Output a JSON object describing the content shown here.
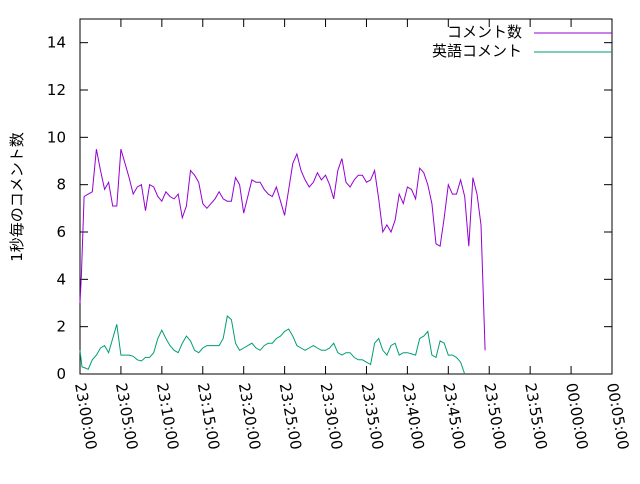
{
  "chart_data": {
    "type": "line",
    "title": "",
    "ylabel": "1秒毎のコメント数",
    "xlabel": "",
    "ylim": [
      0,
      15
    ],
    "y_ticks": [
      0,
      2,
      4,
      6,
      8,
      10,
      12,
      14
    ],
    "x_ticks": [
      "23:00:00",
      "23:05:00",
      "23:10:00",
      "23:15:00",
      "23:20:00",
      "23:25:00",
      "23:30:00",
      "23:35:00",
      "23:40:00",
      "23:45:00",
      "23:50:00",
      "23:55:00",
      "00:00:00",
      "00:05:00"
    ],
    "x_range": [
      "23:00:00",
      "00:05:00"
    ],
    "legend_position": "top-right",
    "grid": false,
    "series": [
      {
        "name": "コメント数",
        "color": "#9400d3",
        "points": [
          [
            "23:00:00",
            3.0
          ],
          [
            "23:00:10",
            4.2
          ],
          [
            "23:00:30",
            7.5
          ],
          [
            "23:01:00",
            7.6
          ],
          [
            "23:01:30",
            7.7
          ],
          [
            "23:02:00",
            9.5
          ],
          [
            "23:02:30",
            8.6
          ],
          [
            "23:03:00",
            7.8
          ],
          [
            "23:03:30",
            8.1
          ],
          [
            "23:04:00",
            7.1
          ],
          [
            "23:04:30",
            7.1
          ],
          [
            "23:05:00",
            9.5
          ],
          [
            "23:05:30",
            8.9
          ],
          [
            "23:06:00",
            8.3
          ],
          [
            "23:06:30",
            7.6
          ],
          [
            "23:07:00",
            7.9
          ],
          [
            "23:07:30",
            8.0
          ],
          [
            "23:08:00",
            6.9
          ],
          [
            "23:08:30",
            8.0
          ],
          [
            "23:09:00",
            7.9
          ],
          [
            "23:09:30",
            7.5
          ],
          [
            "23:10:00",
            7.3
          ],
          [
            "23:10:30",
            7.7
          ],
          [
            "23:11:00",
            7.5
          ],
          [
            "23:11:30",
            7.4
          ],
          [
            "23:12:00",
            7.6
          ],
          [
            "23:12:30",
            6.6
          ],
          [
            "23:13:00",
            7.1
          ],
          [
            "23:13:30",
            8.6
          ],
          [
            "23:14:00",
            8.4
          ],
          [
            "23:14:30",
            8.1
          ],
          [
            "23:15:00",
            7.2
          ],
          [
            "23:15:30",
            7.0
          ],
          [
            "23:16:00",
            7.2
          ],
          [
            "23:16:30",
            7.4
          ],
          [
            "23:17:00",
            7.7
          ],
          [
            "23:17:30",
            7.4
          ],
          [
            "23:18:00",
            7.3
          ],
          [
            "23:18:30",
            7.3
          ],
          [
            "23:19:00",
            8.3
          ],
          [
            "23:19:30",
            8.0
          ],
          [
            "23:20:00",
            6.8
          ],
          [
            "23:20:30",
            7.5
          ],
          [
            "23:21:00",
            8.2
          ],
          [
            "23:21:30",
            8.1
          ],
          [
            "23:22:00",
            8.1
          ],
          [
            "23:22:30",
            7.8
          ],
          [
            "23:23:00",
            7.6
          ],
          [
            "23:23:30",
            7.5
          ],
          [
            "23:24:00",
            7.9
          ],
          [
            "23:24:30",
            7.3
          ],
          [
            "23:25:00",
            6.7
          ],
          [
            "23:25:30",
            7.8
          ],
          [
            "23:26:00",
            8.9
          ],
          [
            "23:26:30",
            9.3
          ],
          [
            "23:27:00",
            8.6
          ],
          [
            "23:27:30",
            8.2
          ],
          [
            "23:28:00",
            7.9
          ],
          [
            "23:28:30",
            8.1
          ],
          [
            "23:29:00",
            8.5
          ],
          [
            "23:29:30",
            8.2
          ],
          [
            "23:30:00",
            8.4
          ],
          [
            "23:30:30",
            8.0
          ],
          [
            "23:31:00",
            7.4
          ],
          [
            "23:31:30",
            8.6
          ],
          [
            "23:32:00",
            9.1
          ],
          [
            "23:32:30",
            8.1
          ],
          [
            "23:33:00",
            7.9
          ],
          [
            "23:33:30",
            8.2
          ],
          [
            "23:34:00",
            8.4
          ],
          [
            "23:34:30",
            8.4
          ],
          [
            "23:35:00",
            8.1
          ],
          [
            "23:35:30",
            8.2
          ],
          [
            "23:36:00",
            8.6
          ],
          [
            "23:36:30",
            7.4
          ],
          [
            "23:37:00",
            6.0
          ],
          [
            "23:37:30",
            6.3
          ],
          [
            "23:38:00",
            6.0
          ],
          [
            "23:38:30",
            6.5
          ],
          [
            "23:39:00",
            7.6
          ],
          [
            "23:39:30",
            7.2
          ],
          [
            "23:40:00",
            7.9
          ],
          [
            "23:40:30",
            7.8
          ],
          [
            "23:41:00",
            7.4
          ],
          [
            "23:41:30",
            8.7
          ],
          [
            "23:42:00",
            8.5
          ],
          [
            "23:42:30",
            8.0
          ],
          [
            "23:43:00",
            7.2
          ],
          [
            "23:43:30",
            5.5
          ],
          [
            "23:44:00",
            5.4
          ],
          [
            "23:44:30",
            6.6
          ],
          [
            "23:45:00",
            8.0
          ],
          [
            "23:45:30",
            7.6
          ],
          [
            "23:46:00",
            7.6
          ],
          [
            "23:46:30",
            8.2
          ],
          [
            "23:47:00",
            7.5
          ],
          [
            "23:47:30",
            5.4
          ],
          [
            "23:48:00",
            8.3
          ],
          [
            "23:48:30",
            7.6
          ],
          [
            "23:49:00",
            6.3
          ],
          [
            "23:49:30",
            1.0
          ]
        ]
      },
      {
        "name": "英語コメント",
        "color": "#009e73",
        "points": [
          [
            "23:00:00",
            1.0
          ],
          [
            "23:00:15",
            0.3
          ],
          [
            "23:00:40",
            0.25
          ],
          [
            "23:01:00",
            0.2
          ],
          [
            "23:01:30",
            0.6
          ],
          [
            "23:02:00",
            0.8
          ],
          [
            "23:02:30",
            1.1
          ],
          [
            "23:03:00",
            1.2
          ],
          [
            "23:03:30",
            0.9
          ],
          [
            "23:04:00",
            1.5
          ],
          [
            "23:04:30",
            2.1
          ],
          [
            "23:05:00",
            0.8
          ],
          [
            "23:05:30",
            0.8
          ],
          [
            "23:06:00",
            0.8
          ],
          [
            "23:06:30",
            0.75
          ],
          [
            "23:07:00",
            0.6
          ],
          [
            "23:07:30",
            0.55
          ],
          [
            "23:08:00",
            0.7
          ],
          [
            "23:08:30",
            0.7
          ],
          [
            "23:09:00",
            0.9
          ],
          [
            "23:09:30",
            1.5
          ],
          [
            "23:10:00",
            1.85
          ],
          [
            "23:10:30",
            1.5
          ],
          [
            "23:11:00",
            1.2
          ],
          [
            "23:11:30",
            1.0
          ],
          [
            "23:12:00",
            0.9
          ],
          [
            "23:12:30",
            1.3
          ],
          [
            "23:13:00",
            1.6
          ],
          [
            "23:13:30",
            1.4
          ],
          [
            "23:14:00",
            1.0
          ],
          [
            "23:14:30",
            0.9
          ],
          [
            "23:15:00",
            1.1
          ],
          [
            "23:15:30",
            1.2
          ],
          [
            "23:16:00",
            1.2
          ],
          [
            "23:16:30",
            1.2
          ],
          [
            "23:17:00",
            1.2
          ],
          [
            "23:17:30",
            1.5
          ],
          [
            "23:18:00",
            2.45
          ],
          [
            "23:18:30",
            2.3
          ],
          [
            "23:19:00",
            1.3
          ],
          [
            "23:19:30",
            1.0
          ],
          [
            "23:20:00",
            1.1
          ],
          [
            "23:20:30",
            1.2
          ],
          [
            "23:21:00",
            1.3
          ],
          [
            "23:21:30",
            1.1
          ],
          [
            "23:22:00",
            1.0
          ],
          [
            "23:22:30",
            1.2
          ],
          [
            "23:23:00",
            1.3
          ],
          [
            "23:23:30",
            1.3
          ],
          [
            "23:24:00",
            1.5
          ],
          [
            "23:24:30",
            1.6
          ],
          [
            "23:25:00",
            1.8
          ],
          [
            "23:25:30",
            1.9
          ],
          [
            "23:26:00",
            1.6
          ],
          [
            "23:26:30",
            1.2
          ],
          [
            "23:27:00",
            1.1
          ],
          [
            "23:27:30",
            1.0
          ],
          [
            "23:28:00",
            1.1
          ],
          [
            "23:28:30",
            1.2
          ],
          [
            "23:29:00",
            1.1
          ],
          [
            "23:29:30",
            1.0
          ],
          [
            "23:30:00",
            1.0
          ],
          [
            "23:30:30",
            1.1
          ],
          [
            "23:31:00",
            1.3
          ],
          [
            "23:31:30",
            0.9
          ],
          [
            "23:32:00",
            0.8
          ],
          [
            "23:32:30",
            0.9
          ],
          [
            "23:33:00",
            0.9
          ],
          [
            "23:33:30",
            0.7
          ],
          [
            "23:34:00",
            0.6
          ],
          [
            "23:34:30",
            0.6
          ],
          [
            "23:35:00",
            0.5
          ],
          [
            "23:35:30",
            0.4
          ],
          [
            "23:36:00",
            1.3
          ],
          [
            "23:36:30",
            1.5
          ],
          [
            "23:37:00",
            1.0
          ],
          [
            "23:37:30",
            0.8
          ],
          [
            "23:38:00",
            1.2
          ],
          [
            "23:38:30",
            1.3
          ],
          [
            "23:39:00",
            0.8
          ],
          [
            "23:39:30",
            0.9
          ],
          [
            "23:40:00",
            0.9
          ],
          [
            "23:40:30",
            0.85
          ],
          [
            "23:41:00",
            0.8
          ],
          [
            "23:41:30",
            1.5
          ],
          [
            "23:42:00",
            1.6
          ],
          [
            "23:42:30",
            1.8
          ],
          [
            "23:43:00",
            0.8
          ],
          [
            "23:43:30",
            0.7
          ],
          [
            "23:44:00",
            1.4
          ],
          [
            "23:44:30",
            1.3
          ],
          [
            "23:45:00",
            0.8
          ],
          [
            "23:45:30",
            0.8
          ],
          [
            "23:46:00",
            0.7
          ],
          [
            "23:46:30",
            0.5
          ],
          [
            "23:47:00",
            0.0
          ]
        ]
      }
    ]
  }
}
